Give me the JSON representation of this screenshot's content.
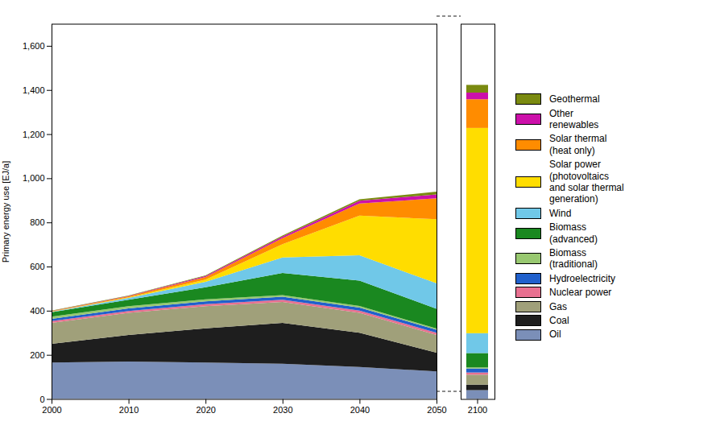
{
  "chart_data": [
    {
      "type": "area",
      "stacked": true,
      "x": [
        2000,
        2010,
        2020,
        2030,
        2040,
        2050
      ],
      "xlim": [
        2000,
        2050
      ],
      "xticks": [
        2000,
        2010,
        2020,
        2030,
        2040,
        2050
      ],
      "ylim": [
        0,
        1700
      ],
      "yticks": [
        0,
        200,
        400,
        600,
        800,
        {
          "value": 1000,
          "label": "1,000"
        },
        {
          "value": 1200,
          "label": "1,200"
        },
        {
          "value": 1400,
          "label": "1,400"
        },
        {
          "value": 1600,
          "label": "1,600"
        }
      ],
      "ylabel": "Primary energy use [EJ/a]",
      "legend": "right",
      "grid": false,
      "series": [
        {
          "name": "Oil",
          "color": "#7b8fb8",
          "values": [
            165,
            170,
            165,
            160,
            145,
            125
          ]
        },
        {
          "name": "Coal",
          "color": "#1e1e1e",
          "values": [
            85,
            120,
            155,
            185,
            155,
            85
          ]
        },
        {
          "name": "Gas",
          "color": "#a0a07a",
          "values": [
            95,
            100,
            100,
            95,
            90,
            80
          ]
        },
        {
          "name": "Nuclear power",
          "color": "#e87090",
          "values": [
            8,
            9,
            10,
            10,
            10,
            10
          ]
        },
        {
          "name": "Hydroelectricity",
          "color": "#2060cc",
          "values": [
            10,
            11,
            12,
            13,
            14,
            14
          ]
        },
        {
          "name": "Biomass\n(traditional)",
          "color": "#98c870",
          "values": [
            10,
            10,
            9,
            8,
            7,
            5
          ]
        },
        {
          "name": "Biomass\n(advanced)",
          "color": "#1a8820",
          "values": [
            20,
            30,
            55,
            100,
            115,
            90
          ]
        },
        {
          "name": "Wind",
          "color": "#70c8e8",
          "values": [
            2,
            8,
            25,
            70,
            115,
            115
          ]
        },
        {
          "name": "Solar power\n(photovoltaics\nand solar thermal\ngeneration)",
          "color": "#ffdd00",
          "values": [
            1,
            3,
            10,
            60,
            180,
            290
          ]
        },
        {
          "name": "Solar thermal\n(heat only)",
          "color": "#ff8c00",
          "values": [
            2,
            4,
            12,
            28,
            55,
            95
          ]
        },
        {
          "name": "Other\nrenewables",
          "color": "#cc10aa",
          "values": [
            1,
            2,
            4,
            7,
            12,
            18
          ]
        },
        {
          "name": "Geothermal",
          "color": "#7a8a10",
          "values": [
            1,
            2,
            3,
            5,
            7,
            12
          ]
        }
      ]
    },
    {
      "type": "bar",
      "stacked": true,
      "categories": [
        "2100"
      ],
      "ylim": [
        0,
        1700
      ],
      "tick_labels": "x",
      "grid": false,
      "series": [
        {
          "name": "Oil",
          "color": "#7b8fb8",
          "values": [
            40
          ]
        },
        {
          "name": "Coal",
          "color": "#1e1e1e",
          "values": [
            25
          ]
        },
        {
          "name": "Gas",
          "color": "#a0a07a",
          "values": [
            45
          ]
        },
        {
          "name": "Nuclear power",
          "color": "#e87090",
          "values": [
            10
          ]
        },
        {
          "name": "Hydroelectricity",
          "color": "#2060cc",
          "values": [
            18
          ]
        },
        {
          "name": "Biomass\n(traditional)",
          "color": "#98c870",
          "values": [
            5
          ]
        },
        {
          "name": "Biomass\n(advanced)",
          "color": "#1a8820",
          "values": [
            65
          ]
        },
        {
          "name": "Wind",
          "color": "#70c8e8",
          "values": [
            90
          ]
        },
        {
          "name": "Solar power\n(photovoltaics\nand solar thermal\ngeneration)",
          "color": "#ffdd00",
          "values": [
            930
          ]
        },
        {
          "name": "Solar thermal\n(heat only)",
          "color": "#ff8c00",
          "values": [
            130
          ]
        },
        {
          "name": "Other\nrenewables",
          "color": "#cc10aa",
          "values": [
            30
          ]
        },
        {
          "name": "Geothermal",
          "color": "#7a8a10",
          "values": [
            35
          ]
        }
      ]
    }
  ]
}
